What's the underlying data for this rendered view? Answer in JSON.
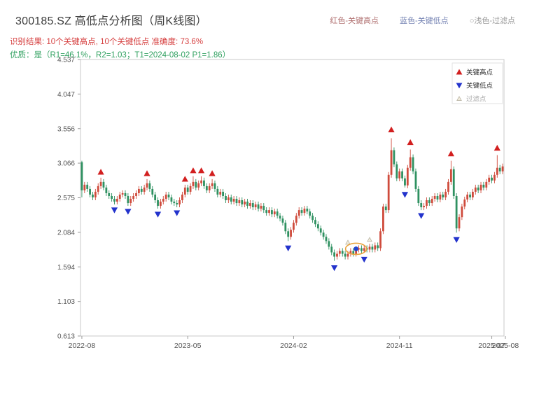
{
  "header": {
    "title": "300185.SZ 高低点分析图（周K线图）",
    "color_legend": [
      {
        "label": "红色-关键高点",
        "color": "#b07070"
      },
      {
        "label": "蓝色-关键低点",
        "color": "#7583b3"
      },
      {
        "label": "○浅色-过滤点",
        "color": "#9a9a9a"
      }
    ],
    "result_line": {
      "text": "识别结果: 10个关键高点, 10个关键低点  准确度: 73.6%",
      "color": "#d64040"
    },
    "quality_line": {
      "text": "优质：是（R1=46.1%，R2=1.03；T1=2024-08-02 P1=1.86）",
      "color": "#2fa05f"
    }
  },
  "chart_data": {
    "type": "candlestick",
    "symbol": "300185.SZ",
    "interval": "weekly",
    "title": "300185.SZ 高低点分析图（周K线图）",
    "grid": false,
    "legend_position": "top-right-inside",
    "ylim": [
      0.613,
      4.537
    ],
    "y_ticks": [
      "4.537",
      "4.047",
      "3.556",
      "3.066",
      "2.575",
      "2.084",
      "1.594",
      "1.103",
      "0.613"
    ],
    "x_ticks": [
      {
        "i": 0,
        "label": "2022-08"
      },
      {
        "i": 39,
        "label": "2023-05"
      },
      {
        "i": 78,
        "label": "2024-02"
      },
      {
        "i": 117,
        "label": "2024-11"
      },
      {
        "i": 151,
        "label": "2025-07"
      },
      {
        "i": 156,
        "label": "2025-08"
      }
    ],
    "first_open": 3.08,
    "wick": 0.04,
    "closes": [
      2.68,
      2.76,
      2.7,
      2.62,
      2.58,
      2.66,
      2.74,
      2.8,
      2.72,
      2.64,
      2.6,
      2.56,
      2.52,
      2.56,
      2.62,
      2.64,
      2.6,
      2.5,
      2.56,
      2.6,
      2.64,
      2.7,
      2.66,
      2.72,
      2.78,
      2.7,
      2.62,
      2.54,
      2.46,
      2.52,
      2.56,
      2.62,
      2.58,
      2.52,
      2.5,
      2.48,
      2.54,
      2.62,
      2.72,
      2.66,
      2.74,
      2.8,
      2.72,
      2.78,
      2.82,
      2.74,
      2.68,
      2.74,
      2.78,
      2.7,
      2.62,
      2.66,
      2.6,
      2.54,
      2.58,
      2.52,
      2.56,
      2.5,
      2.54,
      2.48,
      2.52,
      2.46,
      2.5,
      2.44,
      2.48,
      2.42,
      2.46,
      2.4,
      2.36,
      2.4,
      2.34,
      2.38,
      2.32,
      2.28,
      2.22,
      2.1,
      2.02,
      2.12,
      2.22,
      2.32,
      2.4,
      2.36,
      2.42,
      2.38,
      2.32,
      2.26,
      2.2,
      2.14,
      2.08,
      2.02,
      1.96,
      1.88,
      1.8,
      1.74,
      1.78,
      1.82,
      1.78,
      1.74,
      1.78,
      1.82,
      1.78,
      1.84,
      1.86,
      1.82,
      1.86,
      1.84,
      1.88,
      1.84,
      1.9,
      1.86,
      2.1,
      2.45,
      2.4,
      2.9,
      3.25,
      3.05,
      2.85,
      2.95,
      2.85,
      2.75,
      3.0,
      3.15,
      2.95,
      2.7,
      2.5,
      2.44,
      2.46,
      2.54,
      2.5,
      2.56,
      2.6,
      2.55,
      2.62,
      2.58,
      2.66,
      2.8,
      2.98,
      2.6,
      2.14,
      2.3,
      2.45,
      2.55,
      2.62,
      2.58,
      2.66,
      2.72,
      2.68,
      2.76,
      2.72,
      2.8,
      2.86,
      2.82,
      2.9,
      3.0,
      2.95,
      3.02
    ],
    "overrides": {
      "0": {
        "high": 3.1,
        "low": 2.58
      },
      "7": {
        "high": 2.86
      },
      "12": {
        "low": 2.48
      },
      "17": {
        "low": 2.46
      },
      "24": {
        "high": 2.84
      },
      "28": {
        "low": 2.42
      },
      "35": {
        "low": 2.44
      },
      "41": {
        "high": 2.88
      },
      "44": {
        "high": 2.88
      },
      "48": {
        "high": 2.84
      },
      "76": {
        "low": 1.96
      },
      "93": {
        "low": 1.68
      },
      "104": {
        "low": 1.8
      },
      "114": {
        "high": 3.42
      },
      "119": {
        "low": 2.72
      },
      "121": {
        "high": 3.26
      },
      "125": {
        "low": 2.4
      },
      "136": {
        "high": 3.1
      },
      "138": {
        "low": 2.08
      },
      "153": {
        "high": 3.18
      }
    },
    "key_highs": [
      {
        "i": 7,
        "p": 2.94
      },
      {
        "i": 24,
        "p": 2.92
      },
      {
        "i": 38,
        "p": 2.84
      },
      {
        "i": 41,
        "p": 2.96
      },
      {
        "i": 44,
        "p": 2.96
      },
      {
        "i": 48,
        "p": 2.92
      },
      {
        "i": 114,
        "p": 3.54
      },
      {
        "i": 121,
        "p": 3.36
      },
      {
        "i": 136,
        "p": 3.2
      },
      {
        "i": 153,
        "p": 3.28
      }
    ],
    "key_lows": [
      {
        "i": 12,
        "p": 2.4
      },
      {
        "i": 17,
        "p": 2.38
      },
      {
        "i": 28,
        "p": 2.34
      },
      {
        "i": 35,
        "p": 2.36
      },
      {
        "i": 76,
        "p": 1.86
      },
      {
        "i": 93,
        "p": 1.58
      },
      {
        "i": 104,
        "p": 1.7
      },
      {
        "i": 119,
        "p": 2.62
      },
      {
        "i": 125,
        "p": 2.32
      },
      {
        "i": 138,
        "p": 1.98
      }
    ],
    "filtered": [
      {
        "i": 98,
        "p": 1.94
      },
      {
        "i": 106,
        "p": 1.98
      }
    ],
    "highlight": {
      "i": 101,
      "p": 1.85
    },
    "colors": {
      "up": "#cf4b3c",
      "down": "#2f9161",
      "high_marker": "#d21f1f",
      "low_marker": "#2333cc",
      "filtered_marker": "#f2eddd",
      "filtered_stroke": "#b9b4a4",
      "highlight_ring": "#e8a33d",
      "highlight_dot": "#2244cc",
      "axis": "#c9c9c9",
      "tick_text": "#555555"
    },
    "legend": [
      {
        "label": "关键高点"
      },
      {
        "label": "关键低点"
      },
      {
        "label": "过滤点"
      }
    ]
  }
}
